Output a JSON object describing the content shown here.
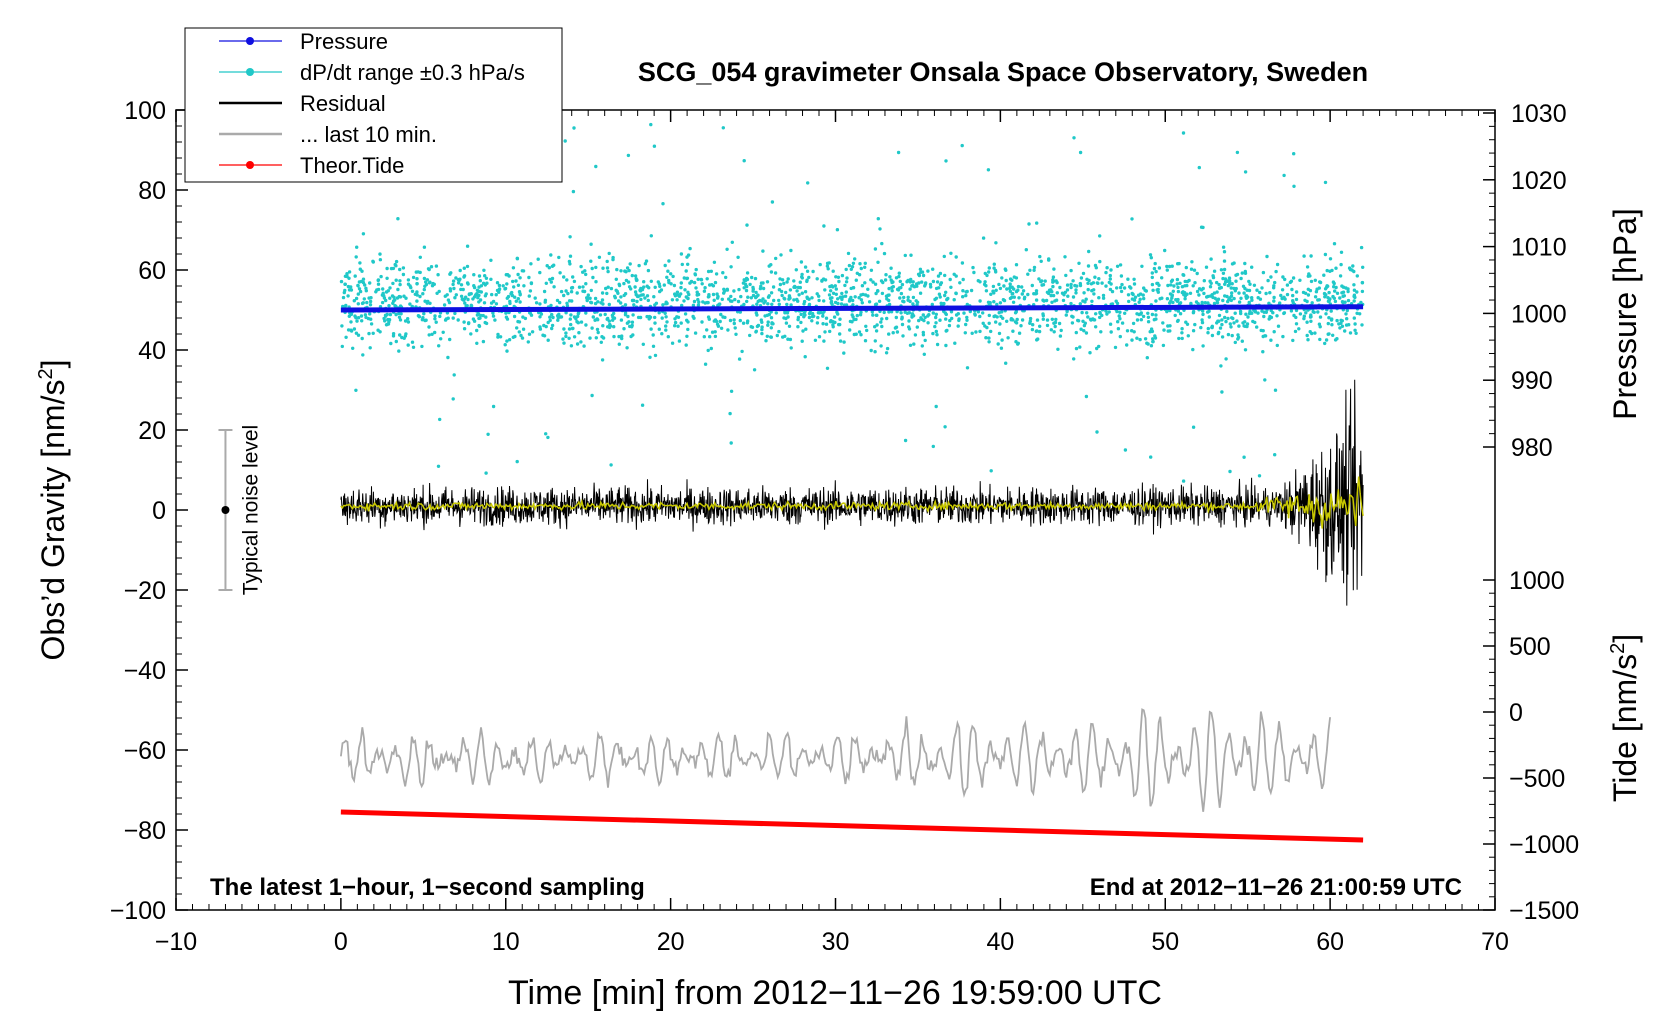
{
  "chart_data": {
    "type": "scatter",
    "title": "SCG_054 gravimeter Onsala Space Observatory, Sweden",
    "xlabel": "Time [min] from 2012−11−26 19:59:00 UTC",
    "ylabel_left": "Obs’d Gravity [nm/s",
    "ylabel_left_sup": "2",
    "ylabel_left_end": "]",
    "ylabel_pressure": "Pressure [hPa]",
    "ylabel_tide": "Tide [nm/s",
    "ylabel_tide_sup": "2",
    "ylabel_tide_end": "]",
    "xlim": [
      -10,
      70
    ],
    "ylim": [
      -100,
      100
    ],
    "x_ticks": [
      "−10",
      "0",
      "10",
      "20",
      "30",
      "40",
      "50",
      "60",
      "70"
    ],
    "y_ticks": [
      "−100",
      "−80",
      "−60",
      "−40",
      "−20",
      "0",
      "20",
      "40",
      "60",
      "80",
      "100"
    ],
    "pressure_ticks": [
      "980",
      "990",
      "1000",
      "1010",
      "1020",
      "1030"
    ],
    "pressure_range": [
      980,
      1030
    ],
    "tide_ticks": [
      "−1500",
      "−1000",
      "−500",
      "0",
      "500",
      "1000"
    ],
    "tide_range": [
      -1500,
      1000
    ],
    "legend": {
      "placement": "top-left",
      "entries": [
        {
          "label": "Pressure",
          "color": "#1010e0",
          "marker": true
        },
        {
          "label": "dP/dt range ±0.3 hPa/s",
          "color": "#20c8c8",
          "marker": true
        },
        {
          "label": "Residual",
          "color": "#000000",
          "marker": false
        },
        {
          "label": "... last 10 min.",
          "color": "#aaaaaa",
          "marker": false
        },
        {
          "label": "Theor.Tide",
          "color": "#ff0000",
          "marker": true
        }
      ]
    },
    "annotations": {
      "bottom_left": "The latest 1−hour, 1−second sampling",
      "bottom_right": "End at 2012−11−26 21:00:59 UTC",
      "noise_label": "Typical noise level"
    },
    "noise_bar": {
      "x": -7,
      "center": 0,
      "low": -20,
      "high": 20
    },
    "series": [
      {
        "name": "Pressure",
        "color": "#1010e0",
        "x": [
          0,
          62
        ],
        "pressure_hPa": [
          1000.5,
          1001.0
        ]
      },
      {
        "name": "dP/dt range ±0.3 hPa/s",
        "color": "#20c8c8",
        "x_range": [
          0,
          62
        ],
        "center_y": 52,
        "spread": 10
      },
      {
        "name": "Residual",
        "color": "#000000",
        "x_range": [
          0,
          62
        ],
        "center_y": 1,
        "amplitude": 4
      },
      {
        "name": "Residual (smoothed)",
        "color": "#c8c800",
        "x_range": [
          0,
          62
        ],
        "center_y": 1,
        "amplitude": 1
      },
      {
        "name": "... last 10 min.",
        "color": "#aaaaaa",
        "x_range": [
          0,
          60
        ],
        "center_y": -62,
        "amplitude": 6
      },
      {
        "name": "Theor.Tide",
        "color": "#ff0000",
        "x": [
          0,
          62
        ],
        "y": [
          -75.5,
          -82.5
        ]
      }
    ]
  }
}
